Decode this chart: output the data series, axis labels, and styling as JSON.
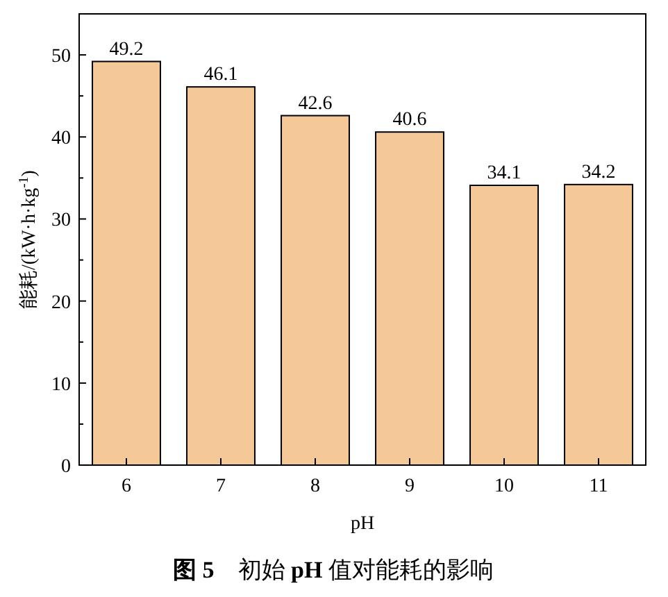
{
  "chart_data": {
    "type": "bar",
    "title": "**图 5**　初始 **pH** 值对能耗的影响",
    "categories": [
      "6",
      "7",
      "8",
      "9",
      "10",
      "11"
    ],
    "values": [
      49.2,
      46.1,
      42.6,
      40.6,
      34.1,
      34.2
    ],
    "color": "#f5c897",
    "data_labels": true,
    "xlabel": "pH",
    "ylabel": "能耗/(kW·h·kg$^{-1}$)",
    "ylim": [
      0,
      55
    ],
    "yticks": [
      0,
      10,
      20,
      30,
      40,
      50
    ]
  }
}
